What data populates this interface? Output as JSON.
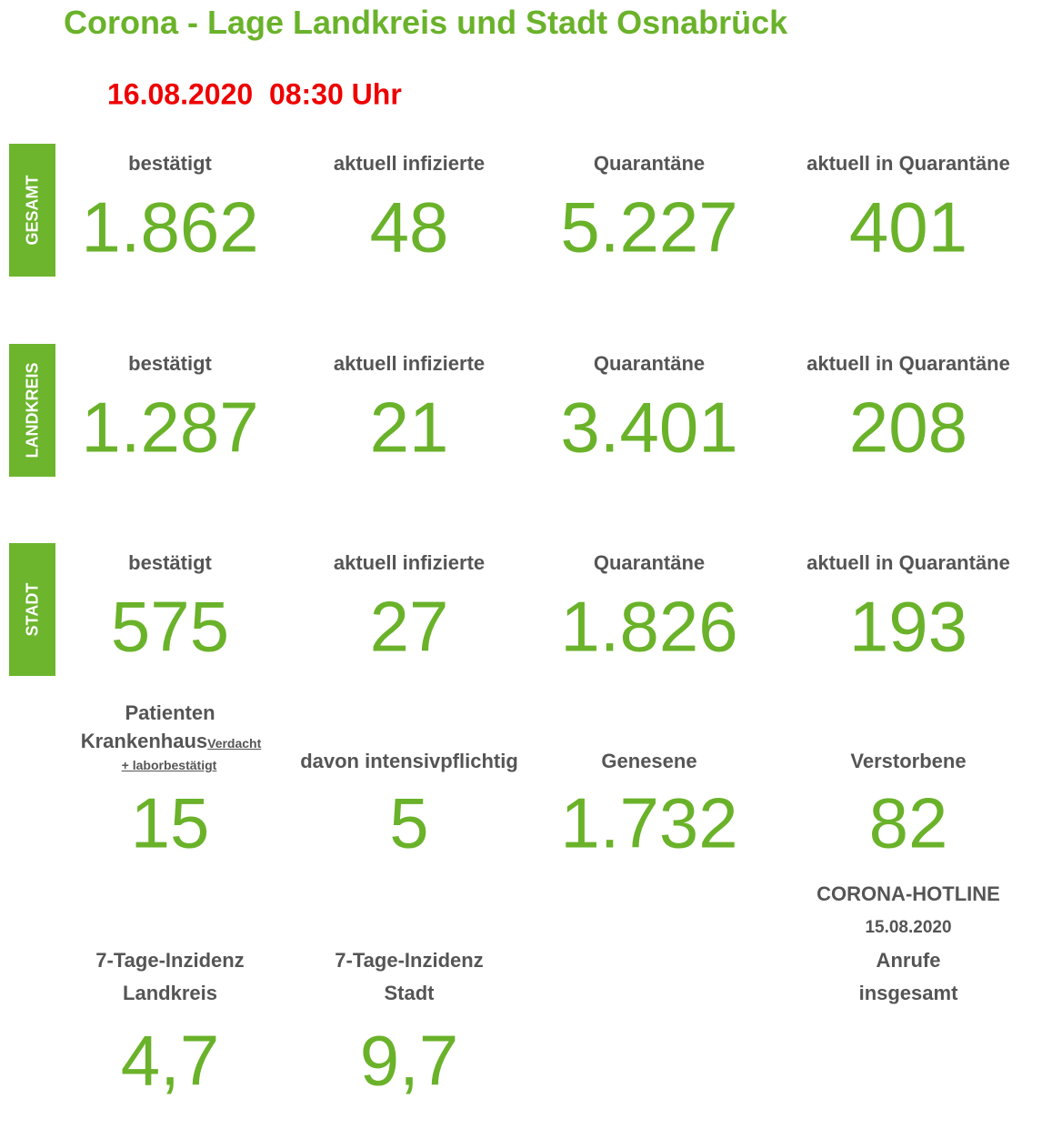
{
  "header": {
    "title": "Corona - Lage Landkreis und Stadt Osnabrück",
    "timestamp": "16.08.2020  08:30 Uhr"
  },
  "sections": [
    {
      "tab": "GESAMT",
      "items": [
        {
          "label": "bestätigt",
          "value": "1.862"
        },
        {
          "label": "aktuell infizierte",
          "value": "48"
        },
        {
          "label": "Quarantäne",
          "value": "5.227"
        },
        {
          "label": "aktuell in Quarantäne",
          "value": "401"
        }
      ]
    },
    {
      "tab": "LANDKREIS",
      "items": [
        {
          "label": "bestätigt",
          "value": "1.287"
        },
        {
          "label": "aktuell infizierte",
          "value": "21"
        },
        {
          "label": "Quarantäne",
          "value": "3.401"
        },
        {
          "label": "aktuell in Quarantäne",
          "value": "208"
        }
      ]
    },
    {
      "tab": "STADT",
      "items": [
        {
          "label": "bestätigt",
          "value": "575"
        },
        {
          "label": "aktuell infizierte",
          "value": "27"
        },
        {
          "label": "Quarantäne",
          "value": "1.826"
        },
        {
          "label": "aktuell in Quarantäne",
          "value": "193"
        }
      ]
    }
  ],
  "status": {
    "hospital": {
      "label": "Patienten",
      "label2": "Krankenhaus",
      "note": "Verdacht",
      "note2": "+ laborbestätigt",
      "value": "15"
    },
    "items": [
      {
        "label": "davon intensivpflichtig",
        "value": "5"
      },
      {
        "label": "Genesene",
        "value": "1.732"
      },
      {
        "label": "Verstorbene",
        "value": "82"
      }
    ]
  },
  "incidence": [
    {
      "label_lines": [
        "7-Tage-Inzidenz",
        "Landkreis"
      ],
      "value": "4,7"
    },
    {
      "label_lines": [
        "7-Tage-Inzidenz",
        "Stadt"
      ],
      "value": "9,7"
    }
  ],
  "hotline": {
    "title": "CORONA-HOTLINE",
    "date": "15.08.2020",
    "label_lines": [
      "Anrufe",
      "insgesamt"
    ]
  }
}
